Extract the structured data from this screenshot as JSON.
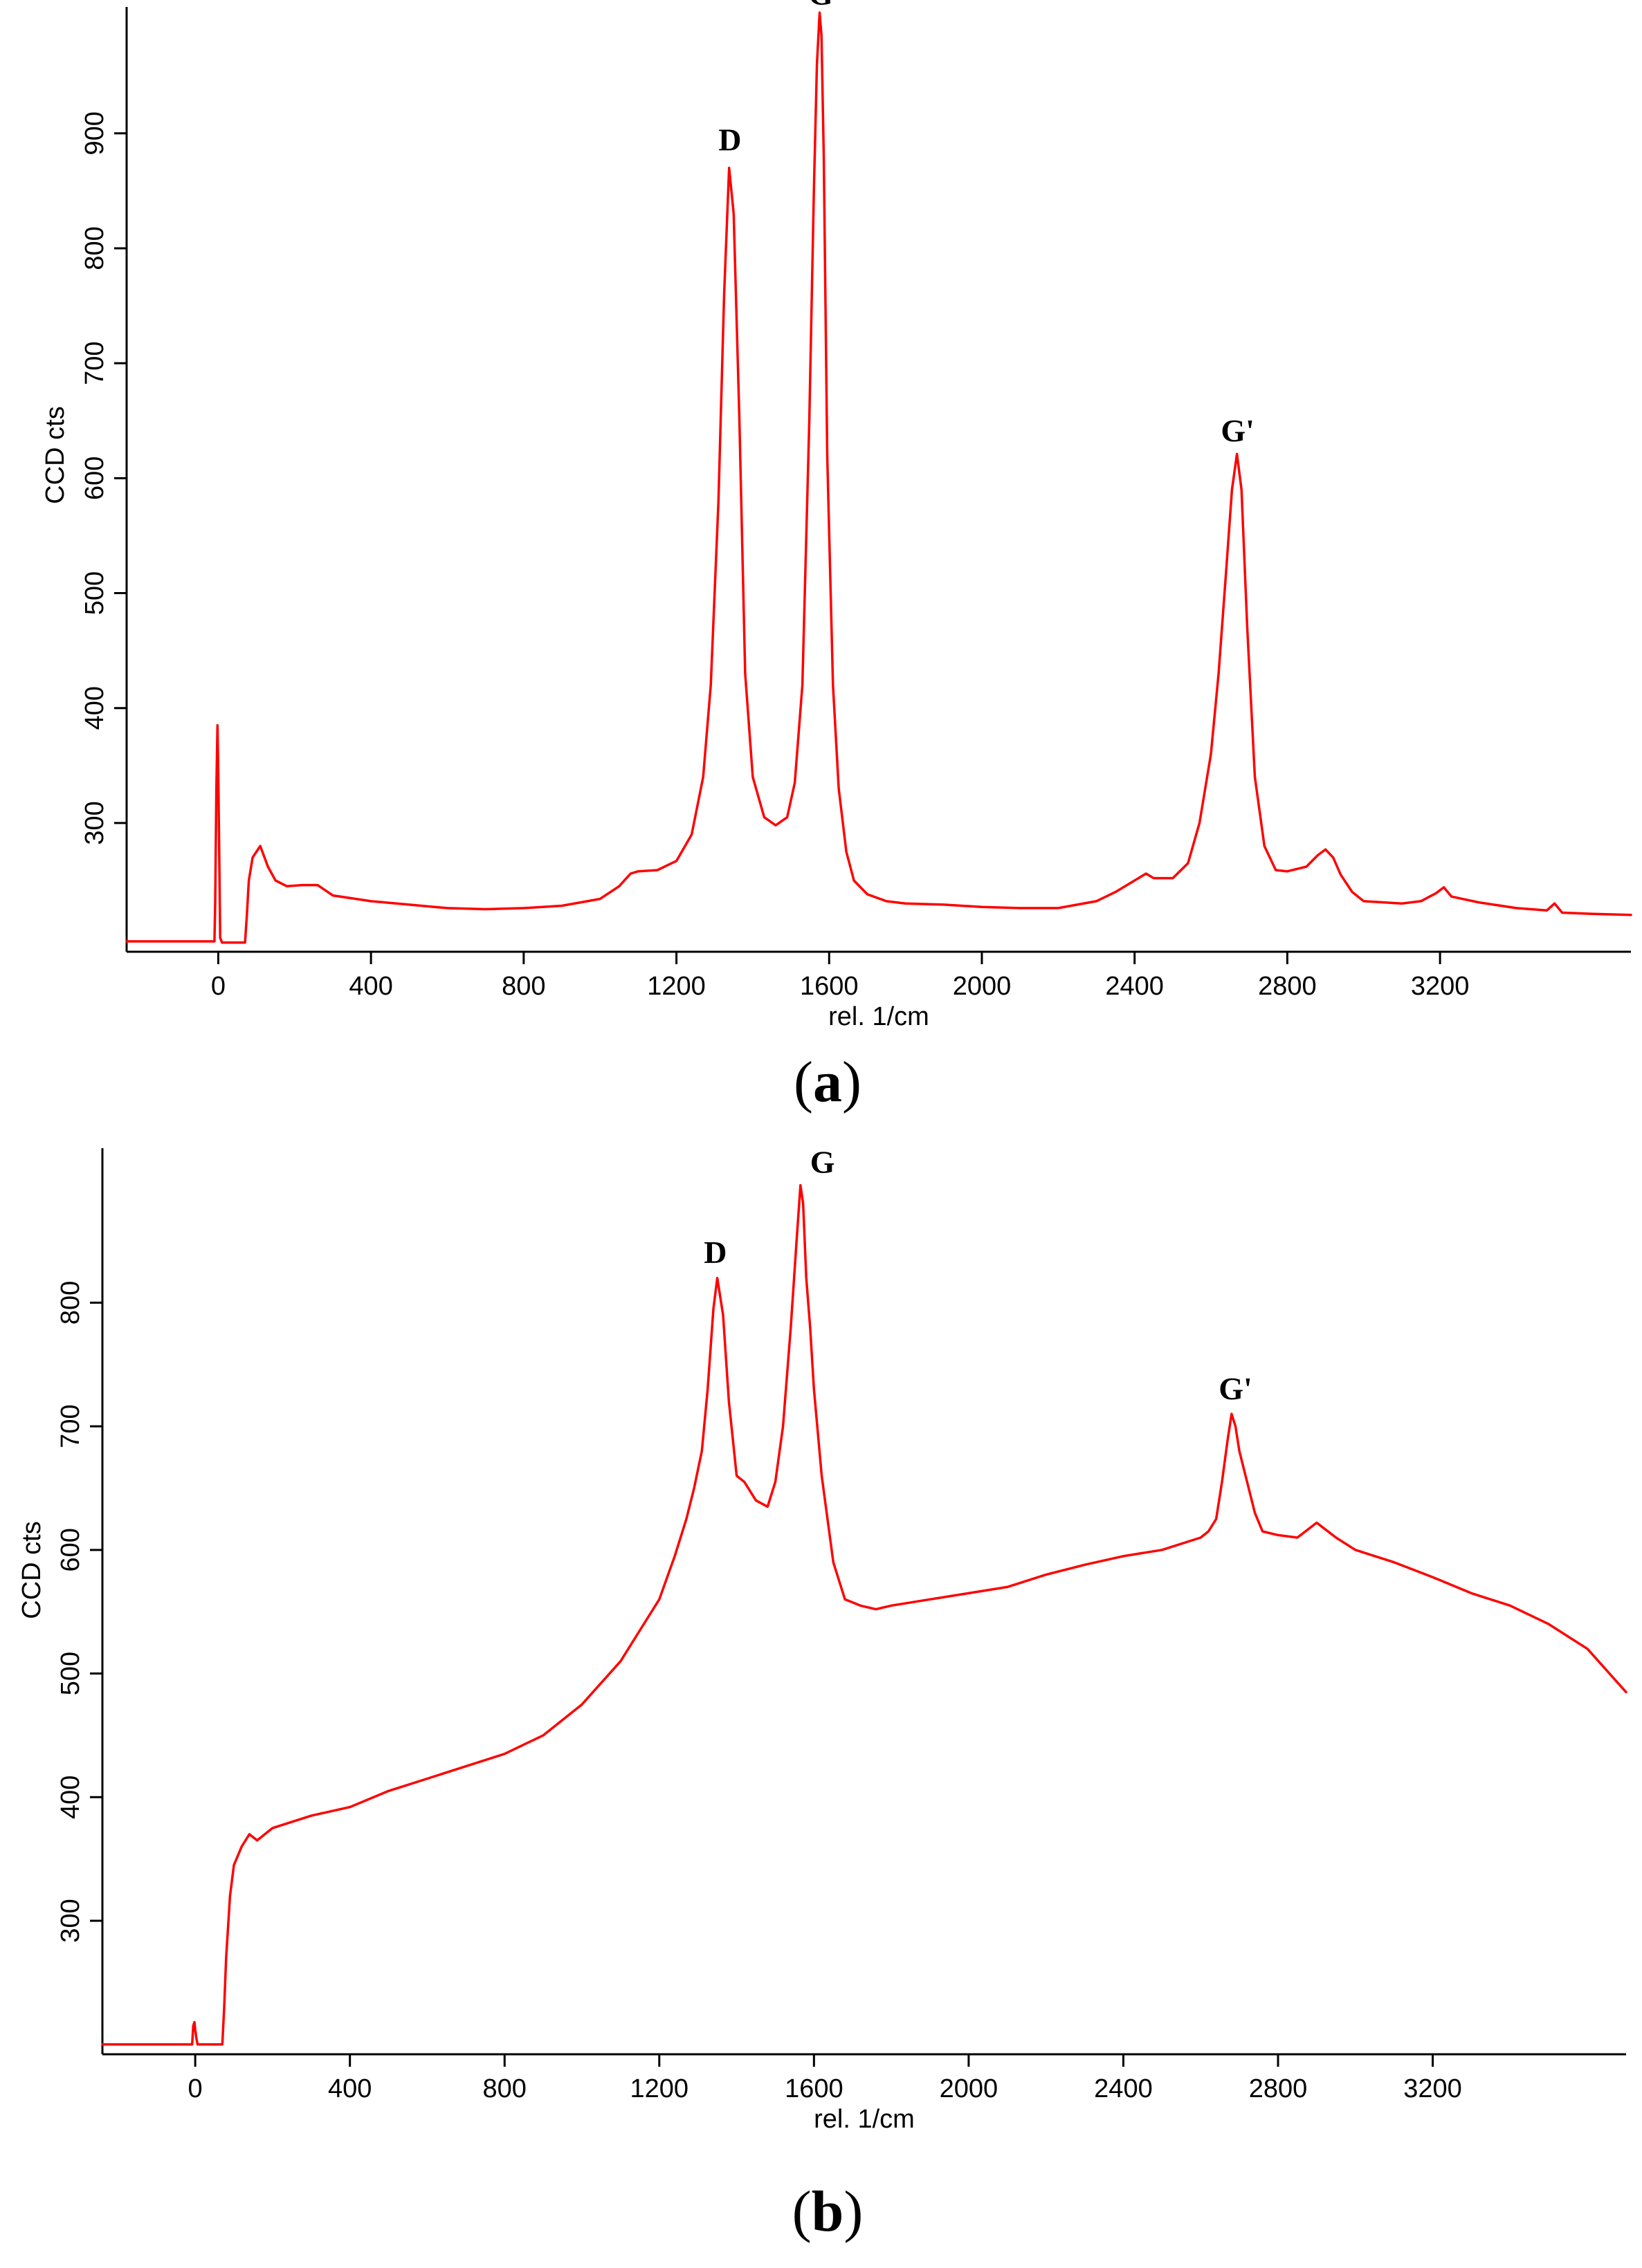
{
  "colors": {
    "series": "#ff0000",
    "axes": "#000000",
    "background": "#ffffff"
  },
  "chart_data": [
    {
      "type": "line",
      "panel": "a",
      "panel_label": {
        "open": "(",
        "letter": "a",
        "close": ")"
      },
      "title": "",
      "xlabel": "rel. 1/cm",
      "ylabel": "CCD cts",
      "xlim": [
        -240,
        3700
      ],
      "ylim": [
        188,
        1010
      ],
      "xticks": [
        0,
        400,
        800,
        1200,
        1600,
        2000,
        2400,
        2800,
        3200
      ],
      "xtick_labels": [
        "0",
        "400",
        "800",
        "1200",
        "1600",
        "2000",
        "2400",
        "2800",
        "3200"
      ],
      "yticks": [
        300,
        400,
        500,
        600,
        700,
        800,
        900
      ],
      "ytick_labels": [
        "300",
        "400",
        "500",
        "600",
        "700",
        "800",
        "900"
      ],
      "grid": false,
      "series": [
        {
          "color": "#ff0000",
          "x": [
            -240,
            -10,
            -8,
            -5,
            -2,
            0,
            3,
            5,
            10,
            15,
            70,
            75,
            80,
            90,
            110,
            130,
            150,
            180,
            220,
            260,
            300,
            400,
            500,
            600,
            700,
            800,
            900,
            1000,
            1050,
            1080,
            1100,
            1150,
            1200,
            1240,
            1270,
            1290,
            1310,
            1325,
            1338,
            1350,
            1365,
            1380,
            1400,
            1430,
            1460,
            1490,
            1510,
            1530,
            1548,
            1560,
            1568,
            1575,
            1580,
            1586,
            1595,
            1610,
            1625,
            1645,
            1665,
            1700,
            1750,
            1800,
            1900,
            2000,
            2100,
            2200,
            2300,
            2350,
            2400,
            2430,
            2450,
            2500,
            2540,
            2570,
            2600,
            2620,
            2640,
            2655,
            2668,
            2680,
            2695,
            2715,
            2740,
            2770,
            2800,
            2850,
            2880,
            2900,
            2920,
            2940,
            2970,
            3000,
            3100,
            3150,
            3190,
            3210,
            3230,
            3300,
            3400,
            3480,
            3500,
            3520,
            3600,
            3700
          ],
          "y": [
            197,
            197,
            230,
            330,
            385,
            345,
            260,
            200,
            196,
            196,
            196,
            220,
            250,
            270,
            280,
            262,
            250,
            245,
            246,
            246,
            237,
            232,
            229,
            226,
            225,
            226,
            228,
            234,
            245,
            256,
            258,
            259,
            267,
            290,
            340,
            420,
            580,
            760,
            870,
            830,
            650,
            430,
            340,
            305,
            298,
            305,
            335,
            420,
            650,
            850,
            960,
            1005,
            985,
            880,
            620,
            420,
            330,
            275,
            250,
            238,
            232,
            230,
            229,
            227,
            226,
            226,
            232,
            240,
            250,
            256,
            252,
            252,
            265,
            300,
            360,
            430,
            520,
            590,
            621,
            590,
            470,
            340,
            280,
            259,
            258,
            262,
            272,
            277,
            270,
            255,
            240,
            232,
            230,
            232,
            239,
            244,
            236,
            231,
            226,
            224,
            230,
            222,
            221,
            220
          ]
        }
      ],
      "annotations": [
        {
          "text": "D",
          "x": 1340,
          "y": 885
        },
        {
          "text": "G",
          "x": 1578,
          "y": 1012
        },
        {
          "text": "G'",
          "x": 2670,
          "y": 632
        }
      ]
    },
    {
      "type": "line",
      "panel": "b",
      "panel_label": {
        "open": "(",
        "letter": "b",
        "close": ")"
      },
      "title": "",
      "xlabel": "rel. 1/cm",
      "ylabel": "CCD cts",
      "xlim": [
        -240,
        3700
      ],
      "ylim": [
        192,
        925
      ],
      "xticks": [
        0,
        400,
        800,
        1200,
        1600,
        2000,
        2400,
        2800,
        3200
      ],
      "xtick_labels": [
        "0",
        "400",
        "800",
        "1200",
        "1600",
        "2000",
        "2400",
        "2800",
        "3200"
      ],
      "yticks": [
        300,
        400,
        500,
        600,
        700,
        800
      ],
      "ytick_labels": [
        "300",
        "400",
        "500",
        "600",
        "700",
        "800"
      ],
      "grid": false,
      "series": [
        {
          "color": "#ff0000",
          "x": [
            -240,
            -8,
            -5,
            -2,
            0,
            3,
            6,
            10,
            70,
            75,
            80,
            90,
            100,
            120,
            140,
            160,
            200,
            300,
            400,
            500,
            600,
            700,
            800,
            900,
            1000,
            1100,
            1150,
            1200,
            1240,
            1270,
            1290,
            1310,
            1325,
            1340,
            1350,
            1365,
            1380,
            1400,
            1420,
            1450,
            1480,
            1500,
            1520,
            1540,
            1555,
            1565,
            1572,
            1580,
            1590,
            1600,
            1620,
            1650,
            1680,
            1720,
            1760,
            1800,
            1900,
            2000,
            2100,
            2200,
            2300,
            2400,
            2500,
            2600,
            2620,
            2640,
            2655,
            2670,
            2680,
            2690,
            2700,
            2720,
            2740,
            2760,
            2800,
            2850,
            2900,
            2950,
            3000,
            3100,
            3200,
            3300,
            3400,
            3500,
            3600,
            3700
          ],
          "y": [
            200,
            200,
            215,
            218,
            212,
            205,
            200,
            200,
            200,
            230,
            270,
            320,
            345,
            360,
            370,
            365,
            375,
            385,
            392,
            405,
            415,
            425,
            435,
            450,
            475,
            510,
            535,
            560,
            595,
            625,
            650,
            680,
            730,
            795,
            820,
            790,
            720,
            660,
            655,
            640,
            635,
            655,
            700,
            780,
            850,
            895,
            880,
            820,
            780,
            730,
            660,
            590,
            560,
            555,
            552,
            555,
            560,
            565,
            570,
            580,
            588,
            595,
            600,
            610,
            615,
            625,
            655,
            690,
            710,
            700,
            680,
            655,
            630,
            615,
            612,
            610,
            622,
            610,
            600,
            590,
            578,
            565,
            555,
            540,
            520,
            485
          ]
        }
      ],
      "annotations": [
        {
          "text": "D",
          "x": 1345,
          "y": 832
        },
        {
          "text": "G",
          "x": 1622,
          "y": 905
        },
        {
          "text": "G'",
          "x": 2690,
          "y": 722
        }
      ]
    }
  ]
}
